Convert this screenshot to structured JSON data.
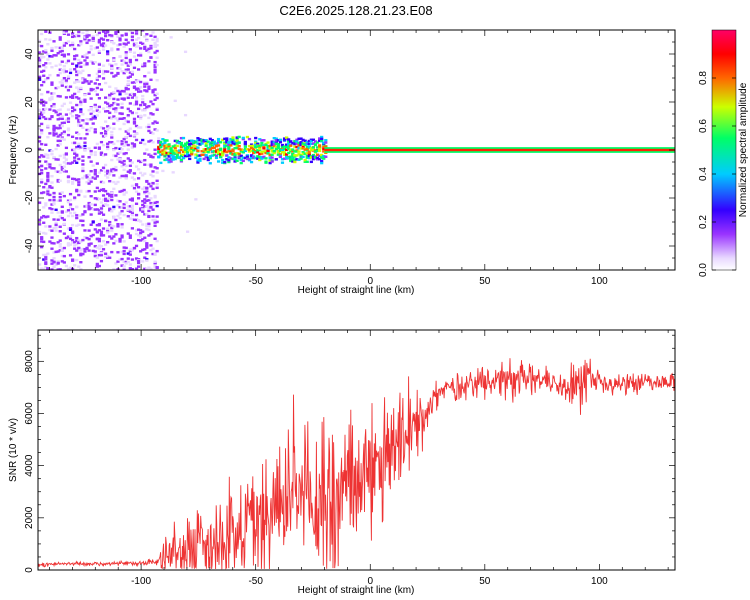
{
  "title": "C2E6.2025.128.21.23.E08",
  "chart_data": [
    {
      "type": "heatmap",
      "xlabel": "Height of straight line (km)",
      "ylabel": "Frequency (Hz)",
      "xlim": [
        -145,
        133
      ],
      "ylim": [
        -50,
        50
      ],
      "xticks": [
        -100,
        -50,
        0,
        50,
        100
      ],
      "yticks": [
        -40,
        -20,
        0,
        20,
        40
      ],
      "colorbar": {
        "label": "Normalized spectral amplitude",
        "range": [
          0,
          1
        ],
        "ticks": [
          0.0,
          0.2,
          0.4,
          0.6,
          0.8
        ],
        "colormap": [
          "#ffffff",
          "#e8d8ff",
          "#9933ff",
          "#3300ff",
          "#00ccff",
          "#00ff66",
          "#ccff00",
          "#ff6600",
          "#ff0000",
          "#ff0066"
        ]
      },
      "regions": [
        {
          "x": [
            -145,
            -93
          ],
          "f_spread": 50,
          "amplitude": 0.2,
          "density": 0.55
        },
        {
          "x": [
            -93,
            -75
          ],
          "f_spread": 50,
          "amplitude": 0.1,
          "density": 0.08
        },
        {
          "x": [
            -93,
            -20
          ],
          "f_spread": 6,
          "amplitude": 0.45,
          "density": 0.9
        },
        {
          "x": [
            -20,
            133
          ],
          "f_spread": 1,
          "amplitude": 0.95,
          "density": 1.0
        }
      ]
    },
    {
      "type": "line",
      "xlabel": "Height of straight line (km)",
      "ylabel": "SNR (10 * v/v)",
      "xlim": [
        -145,
        133
      ],
      "ylim": [
        0,
        9200
      ],
      "xticks": [
        -100,
        -50,
        0,
        50,
        100
      ],
      "yticks": [
        0,
        2000,
        4000,
        6000,
        8000
      ],
      "series": [
        {
          "color": "#ee3333",
          "x": [
            -145,
            -130,
            -115,
            -100,
            -93,
            -90,
            -85,
            -80,
            -75,
            -70,
            -65,
            -60,
            -55,
            -50,
            -45,
            -40,
            -35,
            -30,
            -25,
            -20,
            -15,
            -10,
            -5,
            0,
            5,
            10,
            15,
            20,
            25,
            30,
            35,
            40,
            45,
            50,
            55,
            60,
            65,
            70,
            75,
            80,
            85,
            90,
            92,
            95,
            100,
            105,
            110,
            115,
            120,
            125,
            133
          ],
          "y": [
            200,
            250,
            220,
            280,
            300,
            600,
            700,
            800,
            1000,
            1100,
            1300,
            1500,
            1800,
            2000,
            2300,
            2600,
            2500,
            2800,
            2300,
            3000,
            2600,
            3300,
            3500,
            3500,
            3900,
            4400,
            4900,
            5600,
            6300,
            6800,
            7000,
            7100,
            7200,
            7200,
            7300,
            7400,
            7350,
            7300,
            7400,
            7200,
            7100,
            7200,
            7000,
            7300,
            7200,
            7100,
            7200,
            7150,
            7200,
            7100,
            7200
          ],
          "noise_amplitude": [
            60,
            60,
            60,
            80,
            150,
            700,
            900,
            1100,
            1300,
            1500,
            1600,
            1800,
            2000,
            2100,
            2300,
            2500,
            2600,
            2700,
            2800,
            2900,
            2600,
            2500,
            2400,
            2200,
            2000,
            1800,
            1600,
            1200,
            900,
            700,
            500,
            450,
            400,
            450,
            500,
            700,
            800,
            600,
            500,
            450,
            450,
            900,
            1500,
            800,
            450,
            400,
            350,
            350,
            300,
            300,
            300
          ]
        }
      ]
    }
  ]
}
